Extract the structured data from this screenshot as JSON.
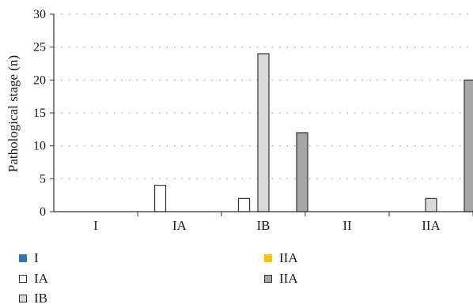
{
  "chart_data": {
    "type": "bar",
    "ylabel": "Pathological stage (n)",
    "xlabel": "",
    "ylim": [
      0,
      30
    ],
    "yticks": [
      0,
      5,
      10,
      15,
      20,
      25,
      30
    ],
    "grid": true,
    "legend_position": "bottom",
    "categories": [
      "I",
      "IA",
      "IB",
      "II",
      "IIA"
    ],
    "series": [
      {
        "name": "I",
        "color": "#2e75b6",
        "edge": "#2e75b6",
        "values": [
          0,
          0,
          0,
          0,
          0
        ]
      },
      {
        "name": "IA",
        "color": "#ffffff",
        "edge": "#333333",
        "values": [
          0,
          4,
          2,
          0,
          0
        ]
      },
      {
        "name": "IB",
        "color": "#d9d9d9",
        "edge": "#333333",
        "values": [
          0,
          0,
          24,
          0,
          2
        ]
      },
      {
        "name": "IIA",
        "color": "#ffc000",
        "edge": "#ffc000",
        "values": [
          0,
          0,
          0,
          0,
          0
        ]
      },
      {
        "name": "IIA",
        "color": "#a6a6a6",
        "edge": "#333333",
        "values": [
          0,
          0,
          12,
          0,
          20
        ]
      }
    ]
  },
  "legend": [
    {
      "label": "I",
      "color": "#2e75b6",
      "edge": "#2e75b6"
    },
    {
      "label": "IIA",
      "color": "#ffc000",
      "edge": "#ffc000"
    },
    {
      "label": "IA",
      "color": "#ffffff",
      "edge": "#333333"
    },
    {
      "label": "IIA",
      "color": "#a6a6a6",
      "edge": "#333333"
    },
    {
      "label": "IB",
      "color": "#d9d9d9",
      "edge": "#333333"
    }
  ]
}
